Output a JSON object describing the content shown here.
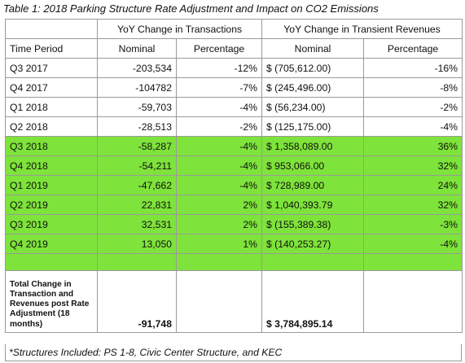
{
  "caption": "Table 1: 2018 Parking Structure Rate Adjustment and Impact on CO2 Emissions",
  "group_headers": {
    "transactions": "YoY Change in Transactions",
    "revenues": "YoY Change in Transient Revenues"
  },
  "columns": [
    "Time Period",
    "Nominal",
    "Percentage",
    "Nominal",
    "Percentage"
  ],
  "highlight_color": "#7ee33a",
  "rows": [
    {
      "period": "Q3 2017",
      "trans_nominal": "-203,534",
      "trans_pct": "-12%",
      "rev_nominal": "$ (705,612.00)",
      "rev_pct": "-16%",
      "highlighted": false
    },
    {
      "period": "Q4 2017",
      "trans_nominal": "-104782",
      "trans_pct": "-7%",
      "rev_nominal": "$ (245,496.00)",
      "rev_pct": "-8%",
      "highlighted": false
    },
    {
      "period": "Q1 2018",
      "trans_nominal": "-59,703",
      "trans_pct": "-4%",
      "rev_nominal": "$ (56,234.00)",
      "rev_pct": "-2%",
      "highlighted": false
    },
    {
      "period": "Q2 2018",
      "trans_nominal": "-28,513",
      "trans_pct": "-2%",
      "rev_nominal": "$ (125,175.00)",
      "rev_pct": "-4%",
      "highlighted": false
    },
    {
      "period": "Q3 2018",
      "trans_nominal": "-58,287",
      "trans_pct": "-4%",
      "rev_nominal": "$ 1,358,089.00",
      "rev_pct": "36%",
      "highlighted": true
    },
    {
      "period": "Q4 2018",
      "trans_nominal": "-54,211",
      "trans_pct": "-4%",
      "rev_nominal": "$ 953,066.00",
      "rev_pct": "32%",
      "highlighted": true
    },
    {
      "period": "Q1 2019",
      "trans_nominal": "-47,662",
      "trans_pct": "-4%",
      "rev_nominal": "$ 728,989.00",
      "rev_pct": "24%",
      "highlighted": true
    },
    {
      "period": "Q2 2019",
      "trans_nominal": "22,831",
      "trans_pct": "2%",
      "rev_nominal": "$ 1,040,393.79",
      "rev_pct": "32%",
      "highlighted": true
    },
    {
      "period": "Q3 2019",
      "trans_nominal": "32,531",
      "trans_pct": "2%",
      "rev_nominal": "$ (155,389.38)",
      "rev_pct": "-3%",
      "highlighted": true
    },
    {
      "period": "Q4 2019",
      "trans_nominal": "13,050",
      "trans_pct": "1%",
      "rev_nominal": "$ (140,253.27)",
      "rev_pct": "-4%",
      "highlighted": true
    }
  ],
  "total": {
    "label": "Total Change in Transaction and Revenues post Rate Adjustment (18 months)",
    "trans_nominal": "-91,748",
    "rev_nominal": "$ 3,784,895.14"
  },
  "footnote": "*Structures Included: PS 1-8, Civic Center Structure, and KEC"
}
